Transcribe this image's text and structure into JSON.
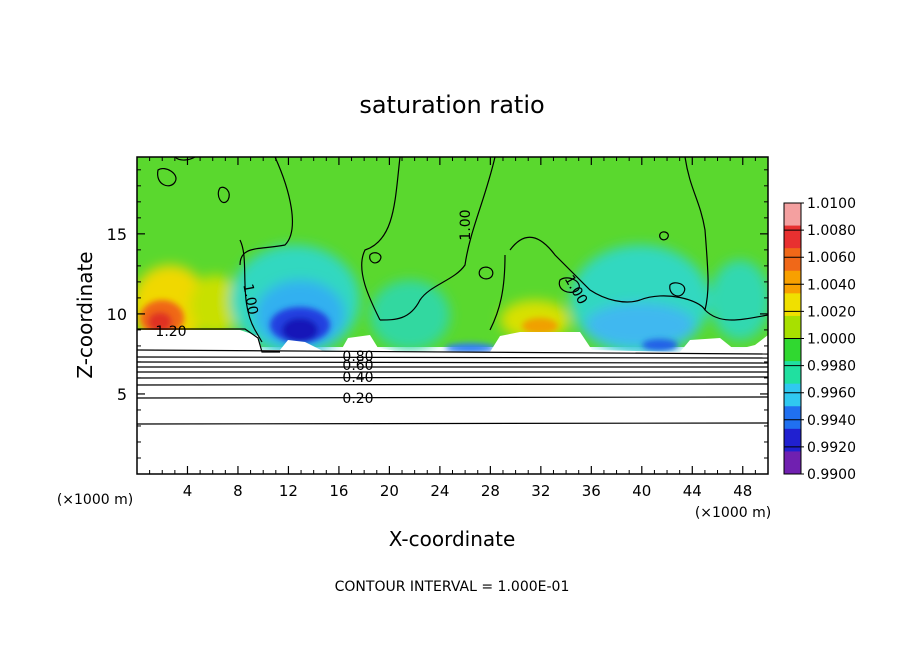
{
  "chart_data": {
    "type": "heatmap",
    "title": "saturation ratio",
    "xlabel": "X-coordinate",
    "ylabel": "Z-coordinate",
    "x_units_left": "(×1000 m)",
    "x_units_right": "(×1000 m)",
    "xlim": [
      0,
      50
    ],
    "ylim": [
      0,
      19.8
    ],
    "x_ticks": [
      "4",
      "8",
      "12",
      "16",
      "20",
      "24",
      "28",
      "32",
      "36",
      "40",
      "44",
      "48"
    ],
    "y_ticks": [
      "5",
      "10",
      "15"
    ],
    "colorbar": {
      "labels": [
        "1.0100",
        "1.0080",
        "1.0060",
        "1.0040",
        "1.0020",
        "1.0000",
        "0.9980",
        "0.9960",
        "0.9940",
        "0.9920",
        "0.9900"
      ],
      "colors": [
        "#f4a0a0",
        "#e83030",
        "#f06818",
        "#f8a000",
        "#f0e000",
        "#a8e000",
        "#30d830",
        "#20e0a0",
        "#30c8f0",
        "#2070f0",
        "#2020d0",
        "#7020b0"
      ]
    },
    "contour_labels": [
      {
        "text": "1.00",
        "x": 26.5,
        "z": 16.0
      },
      {
        "text": "1.00",
        "x": 8.8,
        "z": 10.5
      },
      {
        "text": "1.00",
        "x": 34.8,
        "z": 11.6
      },
      {
        "text": "1.20",
        "x": 2.8,
        "z": 8.9
      },
      {
        "text": "0.80",
        "x": 17.6,
        "z": 7.2
      },
      {
        "text": "0.60",
        "x": 17.6,
        "z": 6.6
      },
      {
        "text": "0.40",
        "x": 17.6,
        "z": 5.9
      },
      {
        "text": "0.20",
        "x": 17.6,
        "z": 4.7
      }
    ],
    "footer": "CONTOUR INTERVAL = 1.000E-01",
    "grid": false,
    "legend": "right"
  }
}
